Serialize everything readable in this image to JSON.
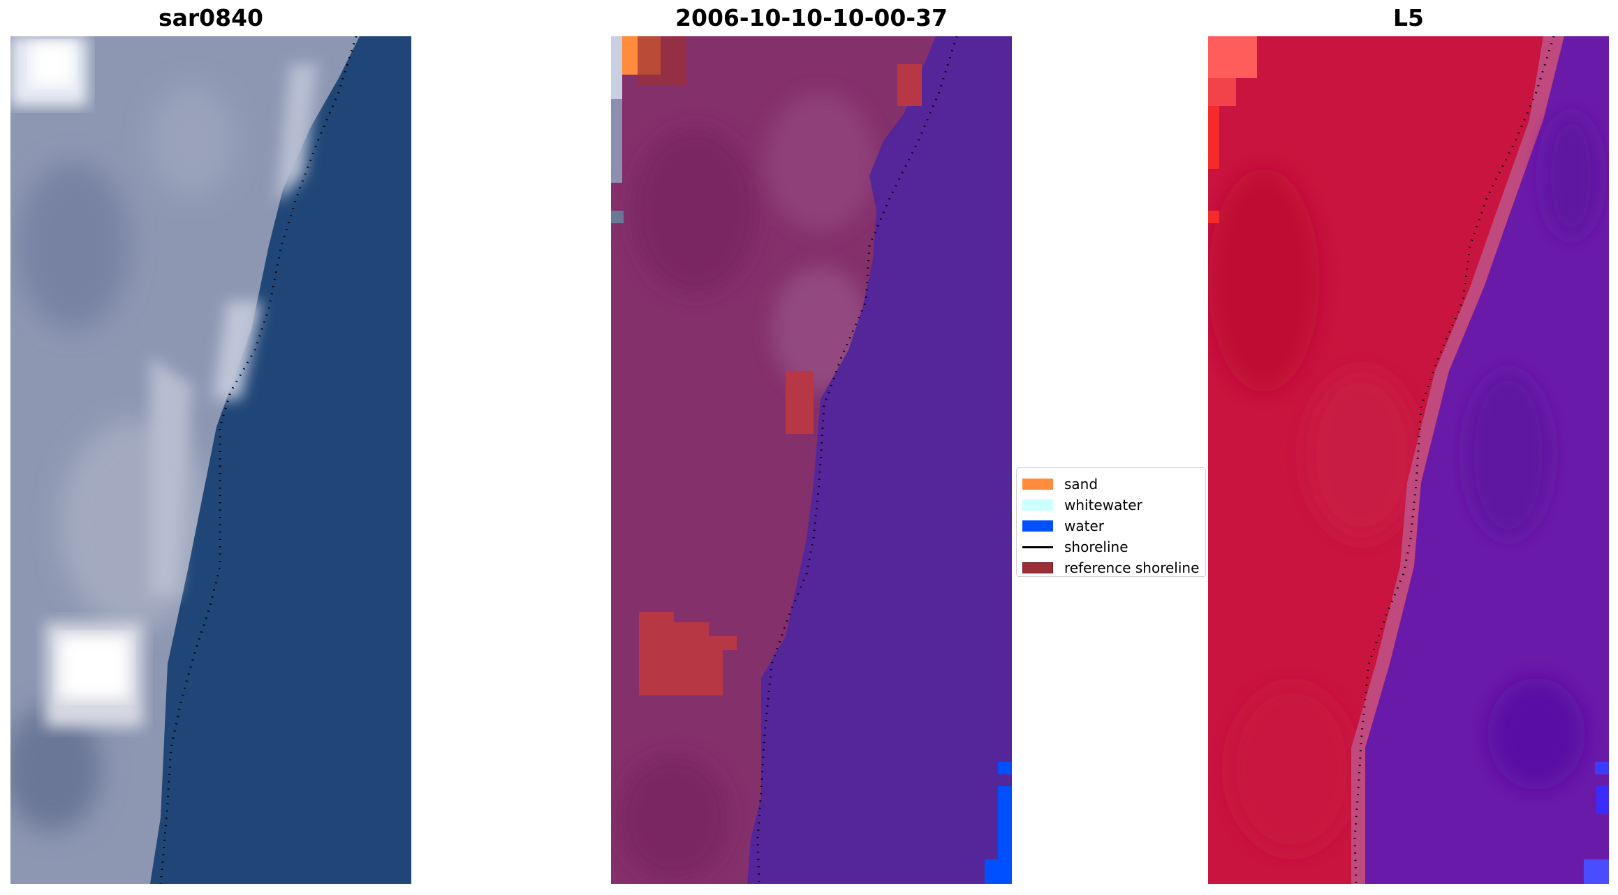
{
  "panels": [
    {
      "title": "sar0840"
    },
    {
      "title": "2006-10-10-10-00-37"
    },
    {
      "title": "L5"
    }
  ],
  "legend": {
    "items": [
      {
        "label": "sand",
        "color": "#ff8c3c",
        "kind": "patch"
      },
      {
        "label": "whitewater",
        "color": "#ccffff",
        "kind": "patch"
      },
      {
        "label": "water",
        "color": "#0050ff",
        "kind": "patch"
      },
      {
        "label": "shoreline",
        "color": "#000000",
        "kind": "line"
      },
      {
        "label": "reference shoreline",
        "color": "#9b2f35",
        "kind": "patch"
      }
    ]
  },
  "colors": {
    "rgb_land": "#8893ae",
    "rgb_water": "#1e4676",
    "class_land": "#84306b",
    "class_water": "#552699",
    "nir_land": "#c8143f",
    "nir_water": "#6a1aa8"
  }
}
